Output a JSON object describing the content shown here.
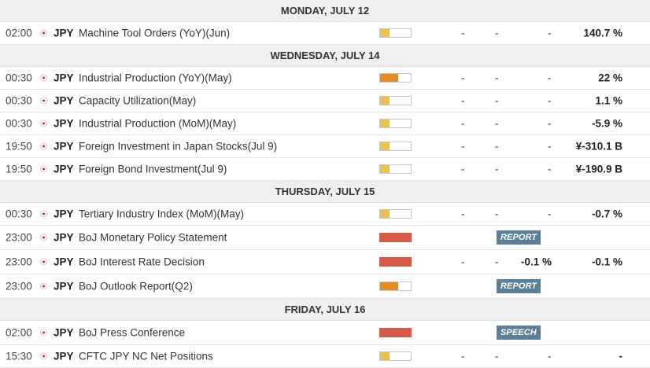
{
  "colors": {
    "low": "#e8c24f",
    "medium": "#e38c22",
    "high": "#d65a4a",
    "badge": "#5b7f98"
  },
  "days": [
    {
      "label": "MONDAY, JULY 12",
      "events": [
        {
          "time": "02:00",
          "currency": "JPY",
          "flag_icon": "japan-flag-icon",
          "name": "Machine Tool Orders (YoY)(Jun)",
          "impact": "low",
          "actual": "-",
          "deviation": "-",
          "consensus": "-",
          "previous": "140.7 %"
        }
      ]
    },
    {
      "label": "WEDNESDAY, JULY 14",
      "events": [
        {
          "time": "00:30",
          "currency": "JPY",
          "flag_icon": "japan-flag-icon",
          "name": "Industrial Production (YoY)(May)",
          "impact": "medium",
          "actual": "-",
          "deviation": "-",
          "consensus": "-",
          "previous": "22 %"
        },
        {
          "time": "00:30",
          "currency": "JPY",
          "flag_icon": "japan-flag-icon",
          "name": "Capacity Utilization(May)",
          "impact": "low",
          "actual": "-",
          "deviation": "-",
          "consensus": "-",
          "previous": "1.1 %"
        },
        {
          "time": "00:30",
          "currency": "JPY",
          "flag_icon": "japan-flag-icon",
          "name": "Industrial Production (MoM)(May)",
          "impact": "low",
          "actual": "-",
          "deviation": "-",
          "consensus": "-",
          "previous": "-5.9 %"
        },
        {
          "time": "19:50",
          "currency": "JPY",
          "flag_icon": "japan-flag-icon",
          "name": "Foreign Investment in Japan Stocks(Jul 9)",
          "impact": "low",
          "actual": "-",
          "deviation": "-",
          "consensus": "-",
          "previous": "¥-310.1 B"
        },
        {
          "time": "19:50",
          "currency": "JPY",
          "flag_icon": "japan-flag-icon",
          "name": "Foreign Bond Investment(Jul 9)",
          "impact": "low",
          "actual": "-",
          "deviation": "-",
          "consensus": "-",
          "previous": "¥-190.9 B"
        }
      ]
    },
    {
      "label": "THURSDAY, JULY 15",
      "events": [
        {
          "time": "00:30",
          "currency": "JPY",
          "flag_icon": "japan-flag-icon",
          "name": "Tertiary Industry Index (MoM)(May)",
          "impact": "low",
          "actual": "-",
          "deviation": "-",
          "consensus": "-",
          "previous": "-0.7 %"
        },
        {
          "time": "23:00",
          "currency": "JPY",
          "flag_icon": "japan-flag-icon",
          "name": "BoJ Monetary Policy Statement",
          "impact": "high",
          "badge": "REPORT"
        },
        {
          "time": "23:00",
          "currency": "JPY",
          "flag_icon": "japan-flag-icon",
          "name": "BoJ Interest Rate Decision",
          "impact": "high",
          "actual": "-",
          "deviation": "-",
          "consensus_bold": "-0.1 %",
          "previous": "-0.1 %"
        },
        {
          "time": "23:00",
          "currency": "JPY",
          "flag_icon": "japan-flag-icon",
          "name": "BoJ Outlook Report(Q2)",
          "impact": "medium",
          "badge": "REPORT"
        }
      ]
    },
    {
      "label": "FRIDAY, JULY 16",
      "events": [
        {
          "time": "02:00",
          "currency": "JPY",
          "flag_icon": "japan-flag-icon",
          "name": "BoJ Press Conference",
          "impact": "high",
          "badge": "SPEECH"
        },
        {
          "time": "15:30",
          "currency": "JPY",
          "flag_icon": "japan-flag-icon",
          "name": "CFTC JPY NC Net Positions",
          "impact": "low",
          "actual": "-",
          "deviation": "-",
          "consensus": "-",
          "previous": "-"
        }
      ]
    }
  ]
}
